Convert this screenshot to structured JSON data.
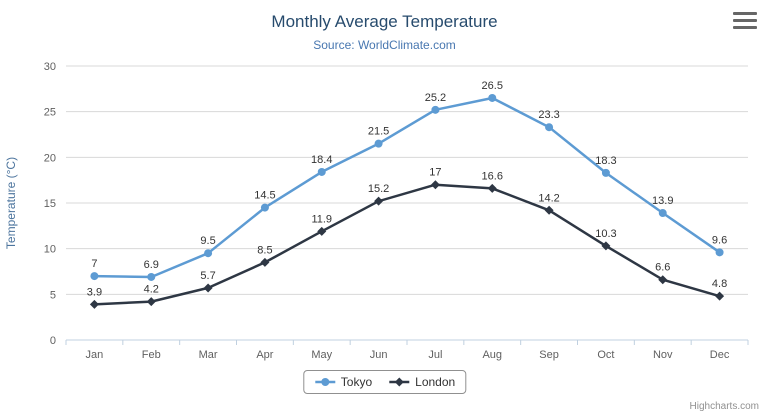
{
  "chart_data": {
    "type": "line",
    "title": "Monthly Average Temperature",
    "subtitle": "Source: WorldClimate.com",
    "xlabel": "",
    "ylabel": "Temperature (°C)",
    "categories": [
      "Jan",
      "Feb",
      "Mar",
      "Apr",
      "May",
      "Jun",
      "Jul",
      "Aug",
      "Sep",
      "Oct",
      "Nov",
      "Dec"
    ],
    "ylim": [
      0,
      30
    ],
    "ytick_interval": 5,
    "grid": true,
    "legend_position": "bottom-center",
    "data_labels": true,
    "series": [
      {
        "name": "Tokyo",
        "color": "#5d9bd3",
        "marker": "circle",
        "values": [
          7,
          6.9,
          9.5,
          14.5,
          18.4,
          21.5,
          25.2,
          26.5,
          23.3,
          18.3,
          13.9,
          9.6
        ]
      },
      {
        "name": "London",
        "color": "#2e3744",
        "marker": "diamond",
        "values": [
          3.9,
          4.2,
          5.7,
          8.5,
          11.9,
          15.2,
          17,
          16.6,
          14.2,
          10.3,
          6.6,
          4.8
        ]
      }
    ]
  },
  "export_menu": {
    "icon": "hamburger-icon"
  },
  "credits": "Highcharts.com"
}
